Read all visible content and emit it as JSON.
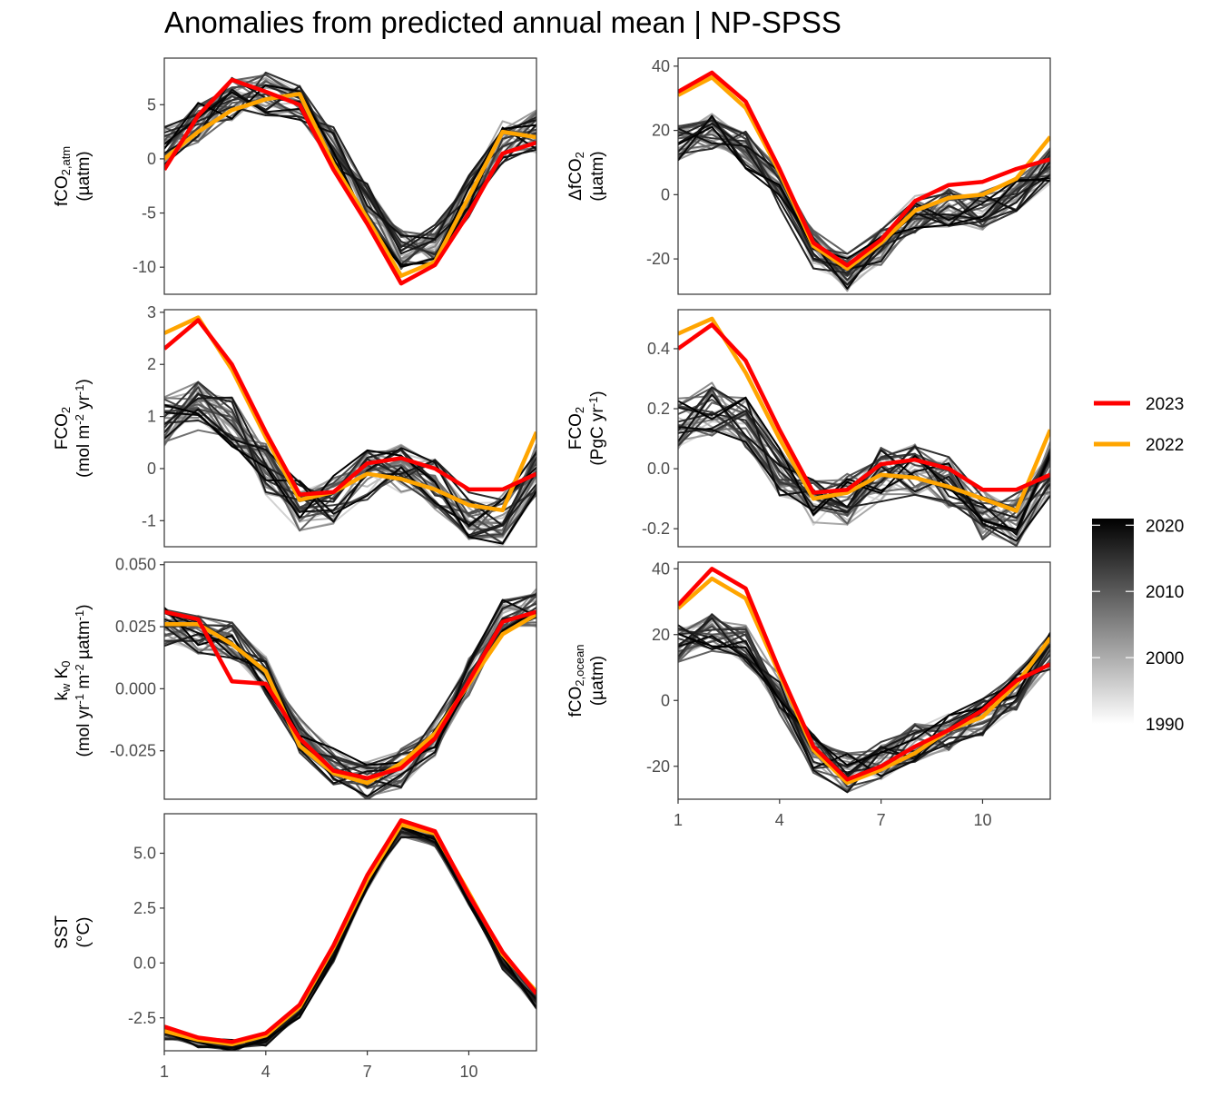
{
  "title": "Anomalies from predicted annual mean | NP-SPSS",
  "colors": {
    "y2023": "#ff0000",
    "y2022": "#ffa500",
    "hist_light": "#d9d9d9",
    "hist_dark": "#000000"
  },
  "legend": {
    "years": [
      {
        "label": "2023",
        "color": "#ff0000"
      },
      {
        "label": "2022",
        "color": "#ffa500"
      }
    ],
    "colorbar": {
      "ticks": [
        "2020",
        "2010",
        "2000",
        "1990"
      ],
      "range": [
        1990,
        2021
      ]
    }
  },
  "chart_data": [
    {
      "id": "fco2atm",
      "type": "line",
      "panel": "top-left",
      "ylabel": {
        "lines": [
          [
            {
              "t": "fCO"
            },
            {
              "t": "2,atm",
              "sub": true
            }
          ],
          [
            {
              "t": "(µatm)"
            }
          ]
        ]
      },
      "ylim": [
        -12.5,
        9.3
      ],
      "yticks": [
        5,
        0,
        -5,
        -10
      ],
      "ytick_labels": [
        "5",
        "0",
        "-5",
        "-10"
      ],
      "x": [
        1,
        2,
        3,
        4,
        5,
        6,
        7,
        8,
        9,
        10,
        11,
        12
      ],
      "xlim": [
        1,
        12
      ],
      "y2023": [
        -1,
        4,
        7.3,
        6.2,
        5,
        -1,
        -6,
        -11.5,
        -9.8,
        -5,
        0.5,
        1.5
      ],
      "y2022": [
        0,
        2.5,
        4.5,
        5.5,
        6,
        -0.5,
        -5.5,
        -10.8,
        -9.5,
        -3.5,
        2.5,
        2
      ],
      "hist_base": [
        1,
        3.5,
        5.5,
        6,
        5.5,
        1,
        -4,
        -8.5,
        -8,
        -3.5,
        1.5,
        2.5
      ],
      "hist_spread": 2
    },
    {
      "id": "dfco2",
      "type": "line",
      "panel": "top-right",
      "ylabel": {
        "lines": [
          [
            {
              "t": "ΔfCO"
            },
            {
              "t": "2",
              "sub": true
            }
          ],
          [
            {
              "t": "(µatm)"
            }
          ]
        ]
      },
      "ylim": [
        -31,
        42.5
      ],
      "yticks": [
        40,
        20,
        0,
        -20
      ],
      "ytick_labels": [
        "40",
        "20",
        "0",
        "-20"
      ],
      "x": [
        1,
        2,
        3,
        4,
        5,
        6,
        7,
        8,
        9,
        10,
        11,
        12
      ],
      "xlim": [
        1,
        12
      ],
      "y2023": [
        32,
        38,
        29,
        8,
        -15,
        -22,
        -14,
        -2,
        3,
        4,
        8,
        11
      ],
      "y2022": [
        31,
        36.5,
        27,
        7,
        -16,
        -23,
        -15,
        -5,
        -1,
        0,
        5,
        18
      ],
      "hist_base": [
        16,
        20,
        14,
        2,
        -17,
        -24,
        -16,
        -6,
        -4,
        -5,
        0,
        9
      ],
      "hist_spread": 6
    },
    {
      "id": "fco2flux",
      "type": "line",
      "panel": "middle-left",
      "ylabel": {
        "lines": [
          [
            {
              "t": "FCO"
            },
            {
              "t": "2",
              "sub": true
            }
          ],
          [
            {
              "t": "(mol m"
            },
            {
              "t": "-2",
              "sup": true
            },
            {
              "t": " yr"
            },
            {
              "t": "-1",
              "sup": true
            },
            {
              "t": ")"
            }
          ]
        ]
      },
      "ylim": [
        -1.5,
        3.05
      ],
      "yticks": [
        3,
        2,
        1,
        0,
        -1
      ],
      "ytick_labels": [
        "3",
        "2",
        "1",
        "0",
        "-1"
      ],
      "x": [
        1,
        2,
        3,
        4,
        5,
        6,
        7,
        8,
        9,
        10,
        11,
        12
      ],
      "xlim": [
        1,
        12
      ],
      "y2023": [
        2.3,
        2.85,
        2,
        0.7,
        -0.5,
        -0.45,
        0.1,
        0.2,
        0,
        -0.4,
        -0.4,
        -0.1
      ],
      "y2022": [
        2.6,
        2.9,
        1.9,
        0.6,
        -0.6,
        -0.45,
        -0.1,
        -0.2,
        -0.4,
        -0.7,
        -0.8,
        0.7
      ],
      "hist_base": [
        0.9,
        1.2,
        0.9,
        0,
        -0.7,
        -0.6,
        -0.1,
        0,
        -0.3,
        -0.9,
        -1,
        0
      ],
      "hist_spread": 0.5
    },
    {
      "id": "fco2pgc",
      "type": "line",
      "panel": "middle-right",
      "ylabel": {
        "lines": [
          [
            {
              "t": "FCO"
            },
            {
              "t": "2",
              "sub": true
            }
          ],
          [
            {
              "t": "(PgC yr"
            },
            {
              "t": "-1",
              "sup": true
            },
            {
              "t": ")"
            }
          ]
        ]
      },
      "ylim": [
        -0.26,
        0.53
      ],
      "yticks": [
        0.4,
        0.2,
        0.0,
        -0.2
      ],
      "ytick_labels": [
        "0.4",
        "0.2",
        "0.0",
        "-0.2"
      ],
      "x": [
        1,
        2,
        3,
        4,
        5,
        6,
        7,
        8,
        9,
        10,
        11,
        12
      ],
      "xlim": [
        1,
        12
      ],
      "y2023": [
        0.4,
        0.48,
        0.36,
        0.13,
        -0.08,
        -0.07,
        0.015,
        0.03,
        0,
        -0.07,
        -0.07,
        -0.02
      ],
      "y2022": [
        0.45,
        0.5,
        0.32,
        0.1,
        -0.1,
        -0.08,
        -0.02,
        -0.03,
        -0.06,
        -0.1,
        -0.14,
        0.13
      ],
      "hist_base": [
        0.15,
        0.2,
        0.15,
        0,
        -0.12,
        -0.1,
        -0.02,
        0,
        -0.05,
        -0.15,
        -0.17,
        0
      ],
      "hist_spread": 0.09
    },
    {
      "id": "kwk0",
      "type": "line",
      "panel": "third-left",
      "ylabel": {
        "lines": [
          [
            {
              "t": "k"
            },
            {
              "t": "w",
              "sub": true
            },
            {
              "t": " K"
            },
            {
              "t": "0",
              "sub": true
            }
          ],
          [
            {
              "t": "(mol yr"
            },
            {
              "t": "-1",
              "sup": true
            },
            {
              "t": " m"
            },
            {
              "t": "-2",
              "sup": true
            },
            {
              "t": " µatm"
            },
            {
              "t": "-1",
              "sup": true
            },
            {
              "t": ")"
            }
          ]
        ]
      },
      "ylim": [
        -0.0445,
        0.051
      ],
      "yticks": [
        0.05,
        0.025,
        0.0,
        -0.025
      ],
      "ytick_labels": [
        "0.050",
        "0.025",
        "0.000",
        "-0.025"
      ],
      "x": [
        1,
        2,
        3,
        4,
        5,
        6,
        7,
        8,
        9,
        10,
        11,
        12
      ],
      "xlim": [
        1,
        12
      ],
      "y2023": [
        0.031,
        0.028,
        0.003,
        0.002,
        -0.02,
        -0.033,
        -0.036,
        -0.032,
        -0.02,
        0.003,
        0.027,
        0.031
      ],
      "y2022": [
        0.026,
        0.026,
        0.018,
        0.007,
        -0.023,
        -0.034,
        -0.038,
        -0.03,
        -0.018,
        0.002,
        0.022,
        0.03
      ],
      "hist_base": [
        0.025,
        0.022,
        0.02,
        0.005,
        -0.018,
        -0.032,
        -0.037,
        -0.032,
        -0.02,
        0.005,
        0.028,
        0.033
      ],
      "hist_spread": 0.008
    },
    {
      "id": "fco2ocean",
      "type": "line",
      "panel": "third-right",
      "ylabel": {
        "lines": [
          [
            {
              "t": "fCO"
            },
            {
              "t": "2,ocean",
              "sub": true
            }
          ],
          [
            {
              "t": "(µatm)"
            }
          ]
        ]
      },
      "ylim": [
        -30,
        42
      ],
      "yticks": [
        40,
        20,
        0,
        -20
      ],
      "ytick_labels": [
        "40",
        "20",
        "0",
        "-20"
      ],
      "x": [
        1,
        2,
        3,
        4,
        5,
        6,
        7,
        8,
        9,
        10,
        11,
        12
      ],
      "xlim": [
        1,
        12
      ],
      "y2023": [
        29,
        40,
        34,
        9,
        -14,
        -24,
        -20,
        -14,
        -9,
        -3,
        6,
        11
      ],
      "y2022": [
        28,
        37,
        31,
        8,
        -15,
        -25,
        -21,
        -16,
        -9,
        -5,
        5,
        19
      ],
      "hist_base": [
        17,
        21,
        17,
        2,
        -16,
        -22,
        -18,
        -13,
        -10,
        -5,
        3,
        15
      ],
      "hist_spread": 6
    },
    {
      "id": "sst",
      "type": "line",
      "panel": "bottom-left",
      "ylabel": {
        "lines": [
          [
            {
              "t": "SST"
            }
          ],
          [
            {
              "t": "(°C)"
            }
          ]
        ]
      },
      "ylim": [
        -4.0,
        6.8
      ],
      "yticks": [
        5.0,
        2.5,
        0.0,
        -2.5
      ],
      "ytick_labels": [
        "5.0",
        "2.5",
        "0.0",
        "-2.5"
      ],
      "x": [
        1,
        2,
        3,
        4,
        5,
        6,
        7,
        8,
        9,
        10,
        11,
        12
      ],
      "xlim": [
        1,
        12
      ],
      "y2023": [
        -2.9,
        -3.4,
        -3.6,
        -3.2,
        -1.9,
        0.8,
        4,
        6.5,
        6,
        3.1,
        0.5,
        -1.4
      ],
      "y2022": [
        -3.1,
        -3.5,
        -3.7,
        -3.3,
        -2,
        0.7,
        3.8,
        6.3,
        5.9,
        3.2,
        0.4,
        -1.3
      ],
      "hist_base": [
        -3.2,
        -3.6,
        -3.8,
        -3.5,
        -2.2,
        0.3,
        3.6,
        6,
        5.6,
        2.9,
        0,
        -1.8
      ],
      "hist_spread": 0.3
    }
  ],
  "xaxis": {
    "ticks": [
      1,
      4,
      7,
      10
    ],
    "tick_labels": [
      "1",
      "4",
      "7",
      "10"
    ]
  }
}
